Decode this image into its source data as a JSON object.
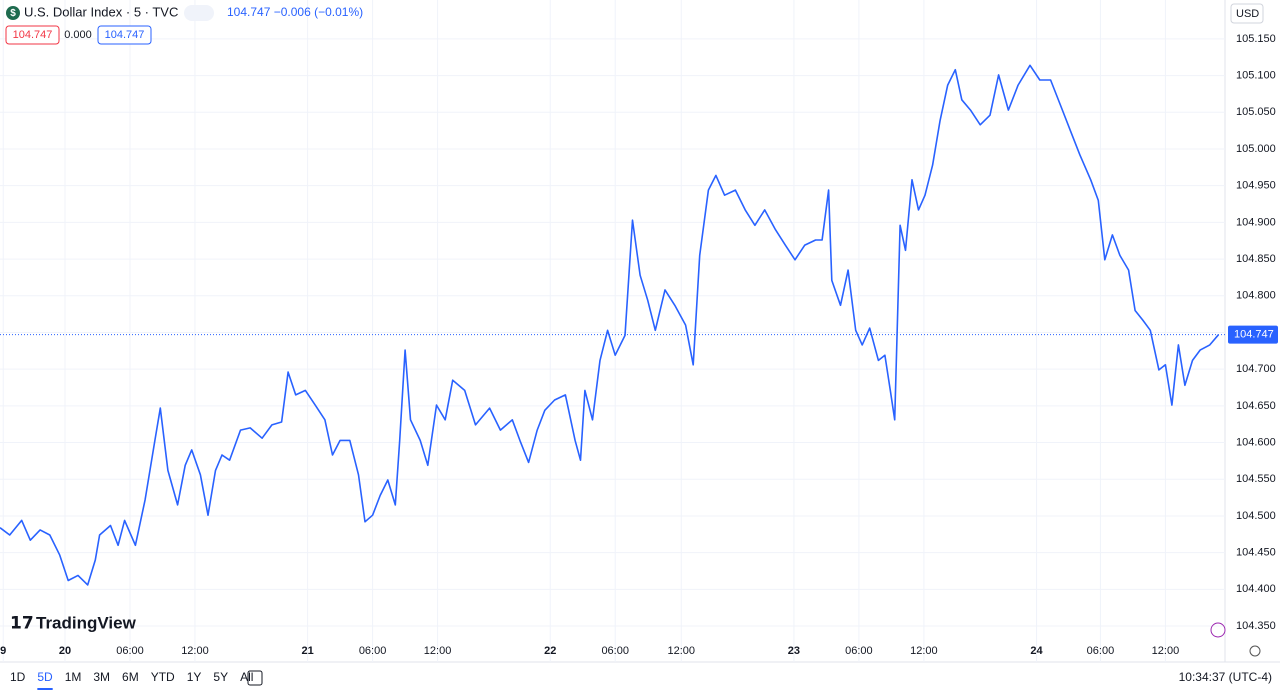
{
  "chart_data": {
    "type": "line",
    "title": "U.S. Dollar Index · 5 · TVC",
    "header_quote": "104.747  −0.006 (−0.01%)",
    "legend_values": [
      "104.747",
      "0.000",
      "104.747"
    ],
    "currency": "USD",
    "brand": "TradingView",
    "ranges": [
      "1D",
      "5D",
      "1M",
      "3M",
      "6M",
      "YTD",
      "1Y",
      "5Y",
      "All"
    ],
    "active_range": "5D",
    "clock": "10:34:37 (UTC-4)",
    "color": "#2962ff",
    "grid": true,
    "last_price": 104.747,
    "last_price_label": "104.747",
    "xlim": [
      -6.0,
      107.1
    ],
    "xticks": [
      {
        "value": -5.7,
        "label": "9"
      },
      {
        "value": 0,
        "label": "20"
      },
      {
        "value": 6,
        "label": "06:00"
      },
      {
        "value": 12,
        "label": "12:00"
      },
      {
        "value": 22.4,
        "label": "21"
      },
      {
        "value": 28.4,
        "label": "06:00"
      },
      {
        "value": 34.4,
        "label": "12:00"
      },
      {
        "value": 44.8,
        "label": "22"
      },
      {
        "value": 50.8,
        "label": "06:00"
      },
      {
        "value": 56.9,
        "label": "12:00"
      },
      {
        "value": 67.3,
        "label": "23"
      },
      {
        "value": 73.3,
        "label": "06:00"
      },
      {
        "value": 79.3,
        "label": "12:00"
      },
      {
        "value": 89.7,
        "label": "24"
      },
      {
        "value": 95.6,
        "label": "06:00"
      },
      {
        "value": 101.6,
        "label": "12:00"
      }
    ],
    "ylim": [
      104.301,
      105.203
    ],
    "yticks": [
      {
        "value": 105.15,
        "label": "105.150"
      },
      {
        "value": 105.1,
        "label": "105.100"
      },
      {
        "value": 105.05,
        "label": "105.050"
      },
      {
        "value": 105.0,
        "label": "105.000"
      },
      {
        "value": 104.95,
        "label": "104.950"
      },
      {
        "value": 104.9,
        "label": "104.900"
      },
      {
        "value": 104.85,
        "label": "104.850"
      },
      {
        "value": 104.8,
        "label": "104.800"
      },
      {
        "value": 104.75,
        "label": "104.750"
      },
      {
        "value": 104.7,
        "label": "104.700"
      },
      {
        "value": 104.65,
        "label": "104.650"
      },
      {
        "value": 104.6,
        "label": "104.600"
      },
      {
        "value": 104.55,
        "label": "104.550"
      },
      {
        "value": 104.5,
        "label": "104.500"
      },
      {
        "value": 104.45,
        "label": "104.450"
      },
      {
        "value": 104.4,
        "label": "104.400"
      },
      {
        "value": 104.35,
        "label": "104.350"
      }
    ],
    "x": [
      -6.0,
      -5.1,
      -4.0,
      -3.2,
      -2.3,
      -1.4,
      -0.5,
      0.3,
      1.2,
      2.1,
      2.8,
      3.2,
      4.2,
      4.9,
      5.5,
      6.5,
      7.4,
      8.3,
      8.8,
      9.5,
      10.4,
      11.1,
      11.7,
      12.5,
      13.2,
      13.9,
      14.5,
      15.2,
      16.2,
      17.1,
      18.2,
      19.1,
      20.0,
      20.6,
      21.3,
      22.2,
      23.1,
      24.0,
      24.7,
      25.4,
      26.3,
      27.1,
      27.7,
      28.4,
      29.1,
      29.8,
      30.5,
      30.9,
      31.4,
      31.9,
      32.8,
      33.5,
      34.3,
      35.1,
      35.8,
      36.9,
      37.9,
      39.2,
      40.2,
      41.3,
      42.0,
      42.8,
      43.6,
      44.3,
      45.2,
      46.2,
      47.1,
      47.6,
      48.0,
      48.7,
      49.4,
      50.1,
      50.8,
      51.7,
      52.4,
      53.1,
      53.8,
      54.5,
      55.4,
      56.3,
      57.3,
      58.0,
      58.6,
      59.4,
      60.1,
      60.9,
      61.9,
      62.8,
      63.7,
      64.6,
      65.6,
      66.5,
      67.4,
      68.3,
      69.3,
      69.9,
      70.5,
      70.8,
      71.6,
      72.3,
      73.0,
      73.6,
      74.3,
      75.1,
      75.7,
      76.2,
      76.6,
      77.1,
      77.6,
      78.2,
      78.8,
      79.4,
      80.1,
      80.8,
      81.5,
      82.2,
      82.8,
      83.6,
      84.5,
      85.4,
      86.2,
      87.1,
      88.0,
      89.1,
      90.0,
      91.0,
      91.9,
      92.8,
      93.7,
      94.7,
      95.4,
      96.0,
      96.7,
      97.4,
      98.2,
      98.8,
      99.5,
      100.2,
      101.0,
      101.6,
      102.2,
      102.8,
      103.4,
      104.1,
      104.8,
      105.7,
      106.5
    ],
    "values": [
      104.484,
      104.474,
      104.494,
      104.467,
      104.481,
      104.474,
      104.447,
      104.412,
      104.419,
      104.406,
      104.44,
      104.474,
      104.487,
      104.46,
      104.494,
      104.46,
      104.522,
      104.603,
      104.647,
      104.562,
      104.515,
      104.569,
      104.59,
      104.556,
      104.501,
      104.562,
      104.583,
      104.576,
      104.617,
      104.62,
      104.606,
      104.624,
      104.628,
      104.696,
      104.665,
      104.671,
      104.651,
      104.631,
      104.583,
      104.603,
      104.603,
      104.556,
      104.492,
      104.501,
      104.528,
      104.549,
      104.515,
      104.603,
      104.726,
      104.631,
      104.603,
      104.569,
      104.651,
      104.631,
      104.685,
      104.671,
      104.624,
      104.647,
      104.617,
      104.631,
      104.603,
      104.573,
      104.617,
      104.644,
      104.658,
      104.665,
      104.603,
      104.576,
      104.671,
      104.631,
      104.712,
      104.753,
      104.719,
      104.746,
      104.903,
      104.828,
      104.794,
      104.753,
      104.808,
      104.787,
      104.76,
      104.706,
      104.855,
      104.944,
      104.964,
      104.937,
      104.944,
      104.917,
      104.896,
      104.917,
      104.89,
      104.869,
      104.849,
      104.869,
      104.876,
      104.876,
      104.944,
      104.821,
      104.787,
      104.835,
      104.753,
      104.733,
      104.756,
      104.712,
      104.719,
      104.671,
      104.631,
      104.896,
      104.862,
      104.958,
      104.917,
      104.937,
      104.978,
      105.039,
      105.087,
      105.108,
      105.067,
      105.053,
      105.033,
      105.046,
      105.101,
      105.053,
      105.087,
      105.114,
      105.094,
      105.094,
      105.06,
      105.026,
      104.992,
      104.958,
      104.93,
      104.849,
      104.883,
      104.855,
      104.835,
      104.78,
      104.767,
      104.753,
      104.699,
      104.706,
      104.651,
      104.733,
      104.678,
      104.712,
      104.726,
      104.733,
      104.747
    ]
  }
}
